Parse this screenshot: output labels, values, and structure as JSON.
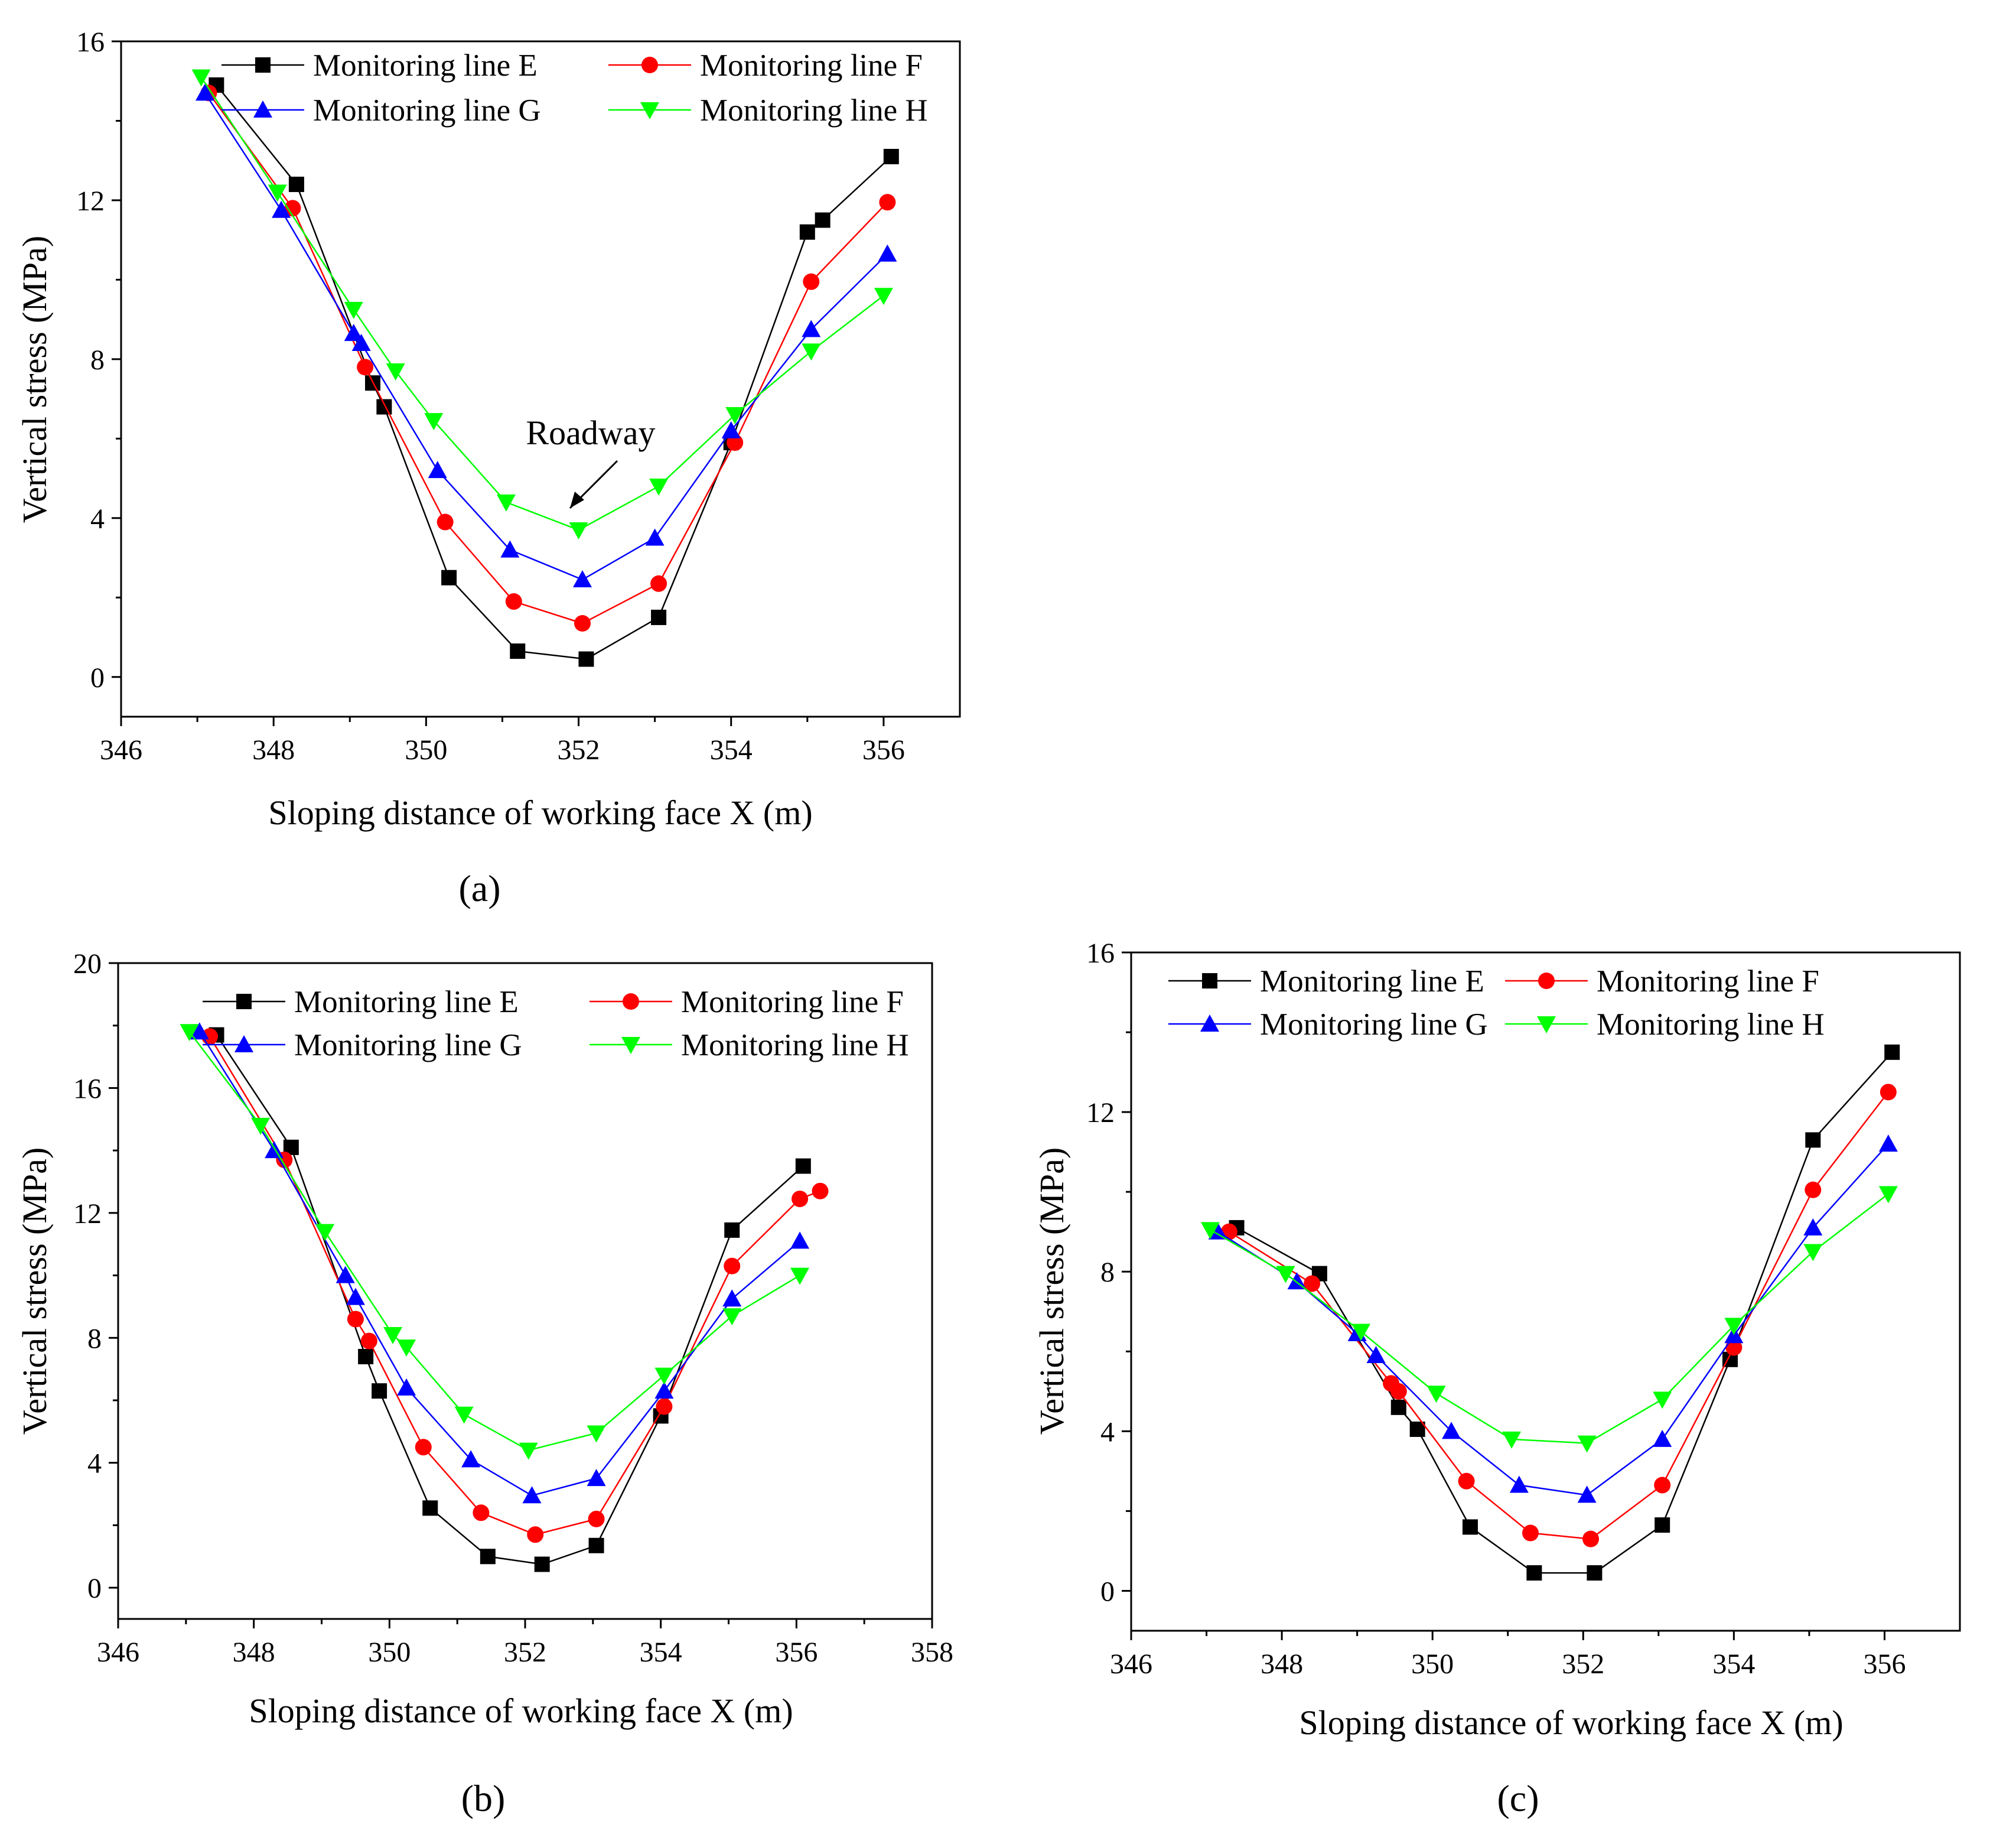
{
  "colors": {
    "Monitoring line E": "#000000",
    "Monitoring line F": "#ff0000",
    "Monitoring line G": "#0000ff",
    "Monitoring line H": "#00ff00"
  },
  "chart_data": [
    {
      "type": "line",
      "panel_label": "(a)",
      "xlabel": "Sloping distance of working face X (m)",
      "ylabel": "Vertical stress (MPa)",
      "xlim": [
        346,
        357
      ],
      "ylim": [
        -1,
        16
      ],
      "xticks": [
        346,
        348,
        350,
        352,
        354,
        356
      ],
      "yticks": [
        0,
        4,
        8,
        12,
        16
      ],
      "legend": "top-center",
      "annotation": {
        "text": "Roadway",
        "x": 351.9,
        "y": 4.3
      },
      "series": [
        {
          "name": "Monitoring line E",
          "marker": "square",
          "color": "#000000",
          "x": [
            347.25,
            348.3,
            349.3,
            349.45,
            350.3,
            351.2,
            352.1,
            353.05,
            354.0,
            355.0,
            355.2,
            356.1
          ],
          "y": [
            14.9,
            12.4,
            7.4,
            6.8,
            2.5,
            0.65,
            0.45,
            1.5,
            5.9,
            11.2,
            11.5,
            13.1
          ]
        },
        {
          "name": "Monitoring line F",
          "marker": "circle",
          "color": "#ff0000",
          "x": [
            347.15,
            348.25,
            349.2,
            350.25,
            351.15,
            352.05,
            353.05,
            354.05,
            355.05,
            356.05
          ],
          "y": [
            14.7,
            11.8,
            7.8,
            3.9,
            1.9,
            1.35,
            2.35,
            5.9,
            9.95,
            11.95
          ]
        },
        {
          "name": "Monitoring line G",
          "marker": "triangle-up",
          "color": "#0000ff",
          "x": [
            347.1,
            348.1,
            349.05,
            349.15,
            350.15,
            351.1,
            352.05,
            353.0,
            354.0,
            355.05,
            356.05
          ],
          "y": [
            14.7,
            11.75,
            8.65,
            8.4,
            5.2,
            3.2,
            2.45,
            3.5,
            6.2,
            8.75,
            10.65
          ]
        },
        {
          "name": "Monitoring line H",
          "marker": "triangle-down",
          "color": "#00ff00",
          "x": [
            347.05,
            348.05,
            349.05,
            349.6,
            350.1,
            351.05,
            352.0,
            353.05,
            354.05,
            355.05,
            356.0
          ],
          "y": [
            15.1,
            12.2,
            9.25,
            7.7,
            6.45,
            4.4,
            3.7,
            4.8,
            6.6,
            8.2,
            9.6
          ]
        }
      ]
    },
    {
      "type": "line",
      "panel_label": "(b)",
      "xlabel": "Sloping distance of working face X (m)",
      "ylabel": "Vertical stress (MPa)",
      "xlim": [
        346,
        358
      ],
      "ylim": [
        -1,
        20
      ],
      "xticks": [
        346,
        348,
        350,
        352,
        354,
        356,
        358
      ],
      "yticks": [
        0,
        4,
        8,
        12,
        16,
        20
      ],
      "legend": "top-center",
      "series": [
        {
          "name": "Monitoring line E",
          "marker": "square",
          "color": "#000000",
          "x": [
            347.45,
            348.55,
            349.65,
            349.85,
            350.6,
            351.45,
            352.25,
            353.05,
            354.0,
            355.05,
            356.1
          ],
          "y": [
            17.7,
            14.1,
            7.4,
            6.3,
            2.55,
            1.0,
            0.75,
            1.35,
            5.5,
            11.45,
            13.5
          ]
        },
        {
          "name": "Monitoring line F",
          "marker": "circle",
          "color": "#ff0000",
          "x": [
            347.35,
            348.45,
            349.5,
            349.7,
            350.5,
            351.35,
            352.15,
            353.05,
            354.05,
            355.05,
            356.05,
            356.35
          ],
          "y": [
            17.65,
            13.7,
            8.6,
            7.9,
            4.5,
            2.4,
            1.7,
            2.2,
            5.8,
            10.3,
            12.45,
            12.7
          ]
        },
        {
          "name": "Monitoring line G",
          "marker": "triangle-up",
          "color": "#0000ff",
          "x": [
            347.2,
            348.3,
            349.35,
            349.5,
            350.25,
            351.2,
            352.1,
            353.05,
            354.05,
            355.05,
            356.05
          ],
          "y": [
            17.8,
            14.0,
            10.0,
            9.3,
            6.4,
            4.1,
            2.95,
            3.5,
            6.3,
            9.25,
            11.1
          ]
        },
        {
          "name": "Monitoring line H",
          "marker": "triangle-down",
          "color": "#00ff00",
          "x": [
            347.05,
            348.1,
            349.05,
            350.05,
            350.25,
            351.1,
            352.05,
            353.05,
            354.05,
            355.05,
            356.05
          ],
          "y": [
            17.8,
            14.8,
            11.4,
            8.1,
            7.7,
            5.55,
            4.4,
            4.95,
            6.8,
            8.7,
            10.0
          ]
        }
      ]
    },
    {
      "type": "line",
      "panel_label": "(c)",
      "xlabel": "Sloping distance of working face X (m)",
      "ylabel": "Vertical stress (MPa)",
      "xlim": [
        346,
        357
      ],
      "ylim": [
        -1,
        16
      ],
      "xticks": [
        346,
        348,
        350,
        352,
        354,
        356
      ],
      "yticks": [
        0,
        4,
        8,
        12,
        16
      ],
      "legend": "top-center",
      "series": [
        {
          "name": "Monitoring line E",
          "marker": "square",
          "color": "#000000",
          "x": [
            347.4,
            348.5,
            349.55,
            349.8,
            350.5,
            351.35,
            352.15,
            353.05,
            353.95,
            355.05,
            356.1
          ],
          "y": [
            9.1,
            7.95,
            4.6,
            4.05,
            1.6,
            0.45,
            0.45,
            1.65,
            5.8,
            11.3,
            13.5
          ]
        },
        {
          "name": "Monitoring line F",
          "marker": "circle",
          "color": "#ff0000",
          "x": [
            347.3,
            348.4,
            349.45,
            349.55,
            350.45,
            351.3,
            352.1,
            353.05,
            354.0,
            355.05,
            356.05
          ],
          "y": [
            9.0,
            7.7,
            5.2,
            5.0,
            2.75,
            1.45,
            1.3,
            2.65,
            6.1,
            10.05,
            12.5
          ]
        },
        {
          "name": "Monitoring line G",
          "marker": "triangle-up",
          "color": "#0000ff",
          "x": [
            347.15,
            348.2,
            349.0,
            349.25,
            350.25,
            351.15,
            352.05,
            353.05,
            354.0,
            355.05,
            356.05
          ],
          "y": [
            9.0,
            7.75,
            6.45,
            5.9,
            4.0,
            2.65,
            2.4,
            3.8,
            6.4,
            9.1,
            11.2
          ]
        },
        {
          "name": "Monitoring line H",
          "marker": "triangle-down",
          "color": "#00ff00",
          "x": [
            347.05,
            348.05,
            349.05,
            350.05,
            351.05,
            352.05,
            353.05,
            354.0,
            355.05,
            356.05
          ],
          "y": [
            9.05,
            7.95,
            6.5,
            4.95,
            3.8,
            3.7,
            4.8,
            6.65,
            8.5,
            9.95
          ]
        }
      ]
    }
  ]
}
